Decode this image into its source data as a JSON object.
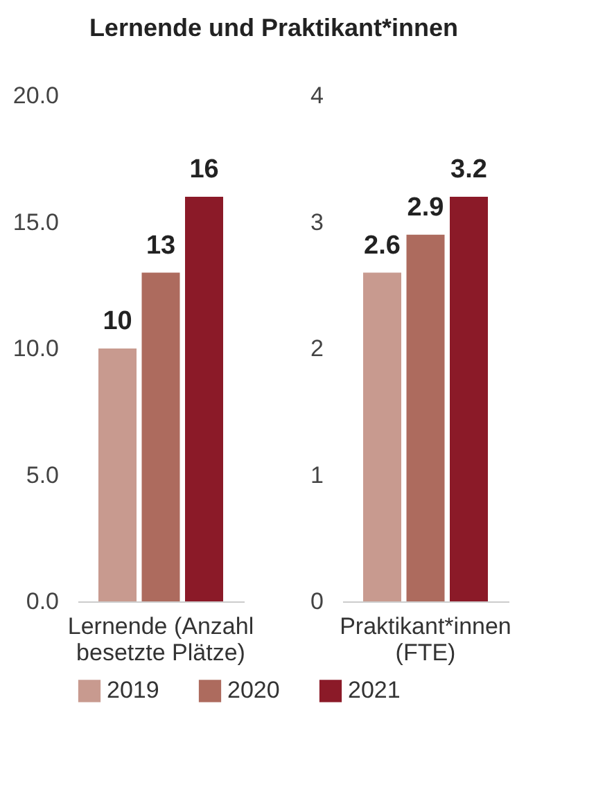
{
  "chart_data": [
    {
      "type": "bar",
      "title": "Lernende und Praktikant*innen",
      "categories": [
        "Lernende (Anzahl besetzte Plätze)"
      ],
      "series": [
        {
          "name": "2019",
          "color": "#c89a8f",
          "values": [
            10
          ]
        },
        {
          "name": "2020",
          "color": "#ad6b5e",
          "values": [
            13
          ]
        },
        {
          "name": "2021",
          "color": "#8b1a28",
          "values": [
            16
          ]
        }
      ],
      "ylim": [
        0,
        20
      ],
      "yticks": [
        {
          "value": 0,
          "label": "0.0"
        },
        {
          "value": 5,
          "label": "5.0"
        },
        {
          "value": 10,
          "label": "10.0"
        },
        {
          "value": 15,
          "label": "15.0"
        },
        {
          "value": 20,
          "label": "20.0"
        }
      ],
      "data_labels": true,
      "legend": "bottom"
    },
    {
      "type": "bar",
      "categories": [
        "Praktikant*innen (FTE)"
      ],
      "series": [
        {
          "color": "#c89a8f",
          "values": [
            2.6
          ]
        },
        {
          "color": "#ad6b5e",
          "values": [
            2.9
          ]
        },
        {
          "color": "#8b1a28",
          "values": [
            3.2
          ]
        }
      ],
      "ylim": [
        0,
        4
      ],
      "yticks": [
        0,
        1,
        2,
        3,
        4
      ],
      "data_labels": true
    }
  ]
}
